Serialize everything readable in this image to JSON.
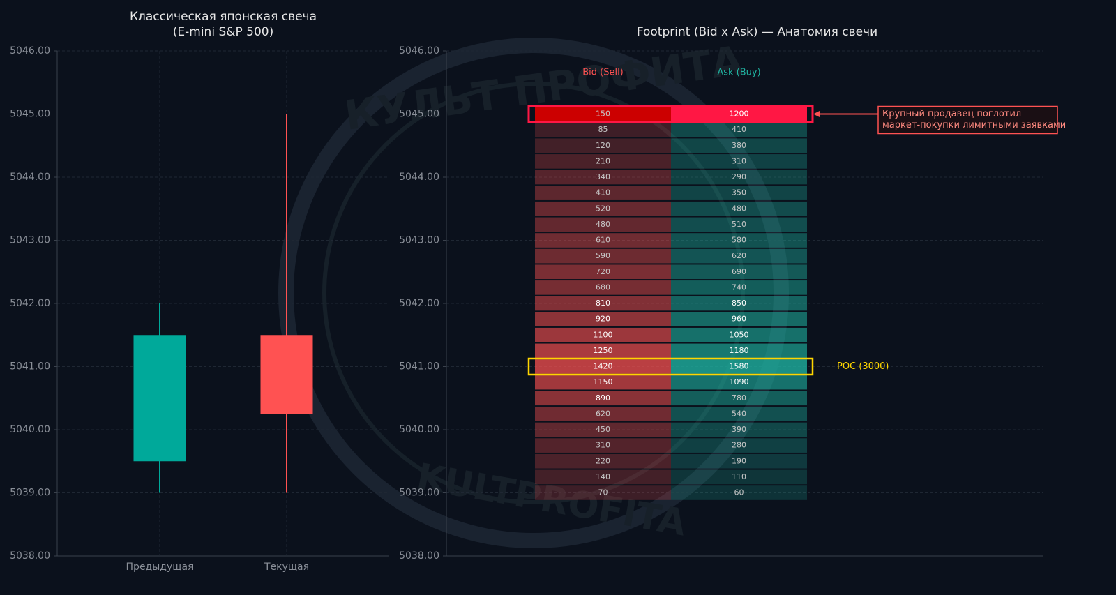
{
  "chart_data": [
    {
      "type": "candlestick",
      "title": [
        "Классическая японская свеча",
        "(E-mini S&P 500)"
      ],
      "categories": [
        "Предыдущая",
        "Текущая"
      ],
      "open": [
        5039.5,
        5041.5
      ],
      "high": [
        5042,
        5045
      ],
      "low": [
        5039,
        5039
      ],
      "close": [
        5041.5,
        5040.25
      ],
      "colors": {
        "up": "#00a99a",
        "down": "#ff5252"
      },
      "ylim": [
        5038,
        5046
      ],
      "yticks": [
        {
          "value": 5038,
          "label": "5038.00"
        },
        {
          "value": 5039,
          "label": "5039.00"
        },
        {
          "value": 5040,
          "label": "5040.00"
        },
        {
          "value": 5041,
          "label": "5041.00"
        },
        {
          "value": 5042,
          "label": "5042.00"
        },
        {
          "value": 5043,
          "label": "5043.00"
        },
        {
          "value": 5044,
          "label": "5044.00"
        },
        {
          "value": 5045,
          "label": "5045.00"
        },
        {
          "value": 5046,
          "label": "5046.00"
        }
      ],
      "grid": true
    },
    {
      "type": "footprint",
      "title": [
        "Footprint (Bid x Ask) — Анатомия свечи"
      ],
      "prices": [
        5045,
        5044.75,
        5044.5,
        5044.25,
        5044,
        5043.75,
        5043.5,
        5043.25,
        5043,
        5042.75,
        5042.5,
        5042.25,
        5042,
        5041.75,
        5041.5,
        5041.25,
        5041,
        5040.75,
        5040.5,
        5040.25,
        5040,
        5039.75,
        5039.5,
        5039.25,
        5039
      ],
      "series": [
        {
          "name": "Bid (Sell)",
          "color": "#ff5252",
          "values": [
            150,
            85,
            120,
            210,
            340,
            410,
            520,
            480,
            610,
            590,
            720,
            680,
            810,
            920,
            1100,
            1250,
            1420,
            1150,
            890,
            620,
            450,
            310,
            220,
            140,
            70
          ]
        },
        {
          "name": "Ask (Buy)",
          "color": "#1fb5a3",
          "values": [
            1200,
            410,
            380,
            310,
            290,
            350,
            480,
            510,
            580,
            620,
            690,
            740,
            850,
            960,
            1050,
            1180,
            1580,
            1090,
            780,
            540,
            390,
            280,
            190,
            110,
            60
          ]
        }
      ],
      "highlight": {
        "price": 5045,
        "color": "#ff1744",
        "annotation": [
          "Крупный продавец поглотил",
          "маркет-покупки лимитными заявками"
        ]
      },
      "poc": {
        "price": 5041,
        "label": "POC (3000)",
        "color": "#ffd600"
      },
      "ylim": [
        5038,
        5046
      ],
      "yticks": [
        {
          "value": 5038,
          "label": "5038.00"
        },
        {
          "value": 5039,
          "label": "5039.00"
        },
        {
          "value": 5040,
          "label": "5040.00"
        },
        {
          "value": 5041,
          "label": "5041.00"
        },
        {
          "value": 5042,
          "label": "5042.00"
        },
        {
          "value": 5043,
          "label": "5043.00"
        },
        {
          "value": 5044,
          "label": "5044.00"
        },
        {
          "value": 5045,
          "label": "5045.00"
        },
        {
          "value": 5046,
          "label": "5046.00"
        }
      ],
      "grid": true
    }
  ],
  "watermark": [
    "КУЛЬТ ПРОФИТА",
    "KULTPROFITA"
  ]
}
